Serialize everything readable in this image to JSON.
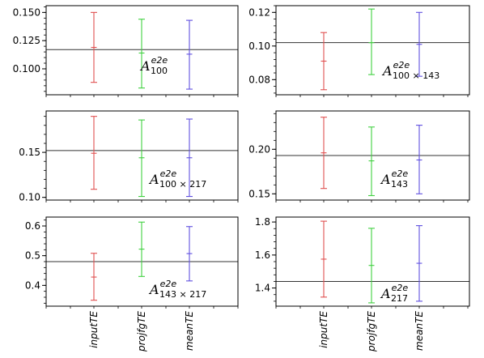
{
  "categories": [
    "inputTE",
    "projfgTE",
    "meanTE"
  ],
  "colors": [
    "#e05050",
    "#40d040",
    "#6050e0"
  ],
  "chart_data": [
    {
      "type": "errorbar",
      "annotation": {
        "base": "A",
        "sup": "e2e",
        "sub": "100"
      },
      "ylim": [
        0.077,
        0.156
      ],
      "yticks": [
        0.1,
        0.125,
        0.15
      ],
      "ytick_labels": [
        "0.100",
        "0.125",
        "0.150"
      ],
      "hline": 0.117,
      "series": [
        {
          "center": 0.119,
          "low": 0.088,
          "high": 0.15
        },
        {
          "center": 0.114,
          "low": 0.083,
          "high": 0.144
        },
        {
          "center": 0.113,
          "low": 0.082,
          "high": 0.143
        }
      ]
    },
    {
      "type": "errorbar",
      "annotation": {
        "base": "A",
        "sup": "e2e",
        "sub": "100 × 143"
      },
      "ylim": [
        0.071,
        0.124
      ],
      "yticks": [
        0.08,
        0.1,
        0.12
      ],
      "ytick_labels": [
        "0.08",
        "0.10",
        "0.12"
      ],
      "hline": 0.102,
      "series": [
        {
          "center": 0.091,
          "low": 0.074,
          "high": 0.108
        },
        {
          "center": 0.102,
          "low": 0.083,
          "high": 0.122
        },
        {
          "center": 0.101,
          "low": 0.082,
          "high": 0.12
        }
      ]
    },
    {
      "type": "errorbar",
      "annotation": {
        "base": "A",
        "sup": "e2e",
        "sub": "100 × 217"
      },
      "ylim": [
        0.097,
        0.196
      ],
      "yticks": [
        0.1,
        0.15
      ],
      "ytick_labels": [
        "0.10",
        "0.15"
      ],
      "hline": 0.152,
      "series": [
        {
          "center": 0.149,
          "low": 0.109,
          "high": 0.19
        },
        {
          "center": 0.144,
          "low": 0.101,
          "high": 0.186
        },
        {
          "center": 0.144,
          "low": 0.101,
          "high": 0.187
        }
      ]
    },
    {
      "type": "errorbar",
      "annotation": {
        "base": "A",
        "sup": "e2e",
        "sub": "143"
      },
      "ylim": [
        0.143,
        0.243
      ],
      "yticks": [
        0.15,
        0.2
      ],
      "ytick_labels": [
        "0.15",
        "0.20"
      ],
      "hline": 0.193,
      "series": [
        {
          "center": 0.196,
          "low": 0.156,
          "high": 0.236
        },
        {
          "center": 0.187,
          "low": 0.148,
          "high": 0.225
        },
        {
          "center": 0.188,
          "low": 0.15,
          "high": 0.227
        }
      ]
    },
    {
      "type": "errorbar",
      "annotation": {
        "base": "A",
        "sup": "e2e",
        "sub": "143 × 217"
      },
      "ylim": [
        0.33,
        0.63
      ],
      "yticks": [
        0.4,
        0.5,
        0.6
      ],
      "ytick_labels": [
        "0.4",
        "0.5",
        "0.6"
      ],
      "hline": 0.48,
      "series": [
        {
          "center": 0.428,
          "low": 0.35,
          "high": 0.508
        },
        {
          "center": 0.522,
          "low": 0.43,
          "high": 0.613
        },
        {
          "center": 0.507,
          "low": 0.415,
          "high": 0.598
        }
      ]
    },
    {
      "type": "errorbar",
      "annotation": {
        "base": "A",
        "sup": "e2e",
        "sub": "217"
      },
      "ylim": [
        1.29,
        1.83
      ],
      "yticks": [
        1.4,
        1.6,
        1.8
      ],
      "ytick_labels": [
        "1.4",
        "1.6",
        "1.8"
      ],
      "hline": 1.44,
      "series": [
        {
          "center": 1.575,
          "low": 1.345,
          "high": 1.805
        },
        {
          "center": 1.537,
          "low": 1.31,
          "high": 1.762
        },
        {
          "center": 1.55,
          "low": 1.32,
          "high": 1.778
        }
      ]
    }
  ]
}
